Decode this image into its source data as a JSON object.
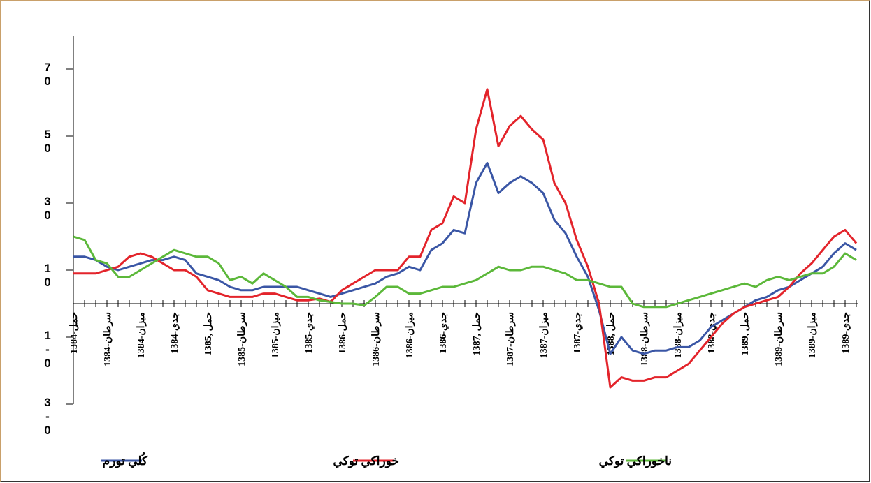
{
  "chart_data": {
    "type": "line",
    "categories": [
      "1384-حمل",
      null,
      null,
      "1384-سرطان",
      null,
      null,
      "1384-ميزان",
      null,
      null,
      "1384-جدي",
      null,
      null,
      "1385, حمل",
      null,
      null,
      "1385-سرطان",
      null,
      null,
      "1385-ميزان",
      null,
      null,
      "1385-جدي",
      null,
      null,
      "1386-حمل",
      null,
      null,
      "1386-سرطان",
      null,
      null,
      "1386-ميزان",
      null,
      null,
      "1386-جدي",
      null,
      null,
      "1387, حمل",
      null,
      null,
      "1387-سرطان",
      null,
      null,
      "1387-ميزان",
      null,
      null,
      "1387-جدي",
      null,
      null,
      "1388, حمل",
      null,
      null,
      "1388-سرطان",
      null,
      null,
      "1388-ميزان",
      null,
      null,
      "1388-جدي",
      null,
      null,
      "1389, حمل",
      null,
      null,
      "1389-سرطان",
      null,
      null,
      "1389-ميزان",
      null,
      null,
      "1389-جدي",
      null
    ],
    "series": [
      {
        "name": "كُلي تورم",
        "color": "#3a56a5",
        "values": [
          14,
          14,
          13,
          11,
          10,
          11,
          12,
          13,
          13,
          14,
          13,
          9,
          8,
          7,
          5,
          4,
          4,
          5,
          5,
          5,
          5,
          4,
          3,
          2,
          3,
          4,
          5,
          6,
          8,
          9,
          11,
          10,
          16,
          18,
          22,
          21,
          36,
          42,
          33,
          36,
          38,
          36,
          33,
          25,
          21,
          14,
          8,
          -2,
          -15,
          -10,
          -14,
          -15,
          -14,
          -14,
          -13,
          -13,
          -11,
          -7,
          -5,
          -3,
          -1,
          1,
          2,
          4,
          5,
          7,
          9,
          11,
          15,
          18,
          16
        ]
      },
      {
        "name": "خوراكي توكي",
        "color": "#e3242b",
        "values": [
          9,
          9,
          9,
          10,
          11,
          14,
          15,
          14,
          12,
          10,
          10,
          8,
          4,
          3,
          2,
          2,
          2,
          3,
          3,
          2,
          1,
          1,
          1.5,
          0.5,
          4,
          6,
          8,
          10,
          10,
          10,
          14,
          14,
          22,
          24,
          32,
          30,
          52,
          64,
          47,
          53,
          56,
          52,
          49,
          36,
          30,
          19,
          11,
          0,
          -25,
          -22,
          -23,
          -23,
          -22,
          -22,
          -20,
          -18,
          -14,
          -10,
          -6,
          -3,
          -1,
          0,
          1,
          2,
          5,
          9,
          12,
          16,
          20,
          22,
          18
        ]
      },
      {
        "name": "ناخوراكي توكي",
        "color": "#5cb83a",
        "values": [
          20,
          19,
          13,
          12,
          8,
          8,
          10,
          12,
          14,
          16,
          15,
          14,
          14,
          12,
          7,
          8,
          6,
          9,
          7,
          5,
          2,
          2,
          1,
          0.5,
          0,
          0,
          -0.5,
          2,
          5,
          5,
          3,
          3,
          4,
          5,
          5,
          6,
          7,
          9,
          11,
          10,
          10,
          11,
          11,
          10,
          9,
          7,
          7,
          6,
          5,
          5,
          0,
          -1,
          -1,
          -1,
          0,
          1,
          2,
          3,
          4,
          5,
          6,
          5,
          7,
          8,
          7,
          8,
          9,
          9,
          11,
          15,
          13
        ]
      }
    ],
    "ylim": [
      -30,
      80
    ],
    "yticks": [
      {
        "value": 70,
        "label": "70"
      },
      {
        "value": 50,
        "label": "50"
      },
      {
        "value": 30,
        "label": "30"
      },
      {
        "value": 10,
        "label": "10"
      },
      {
        "value": -10,
        "label": "1-0"
      },
      {
        "value": -30,
        "label": "3-0"
      }
    ]
  }
}
